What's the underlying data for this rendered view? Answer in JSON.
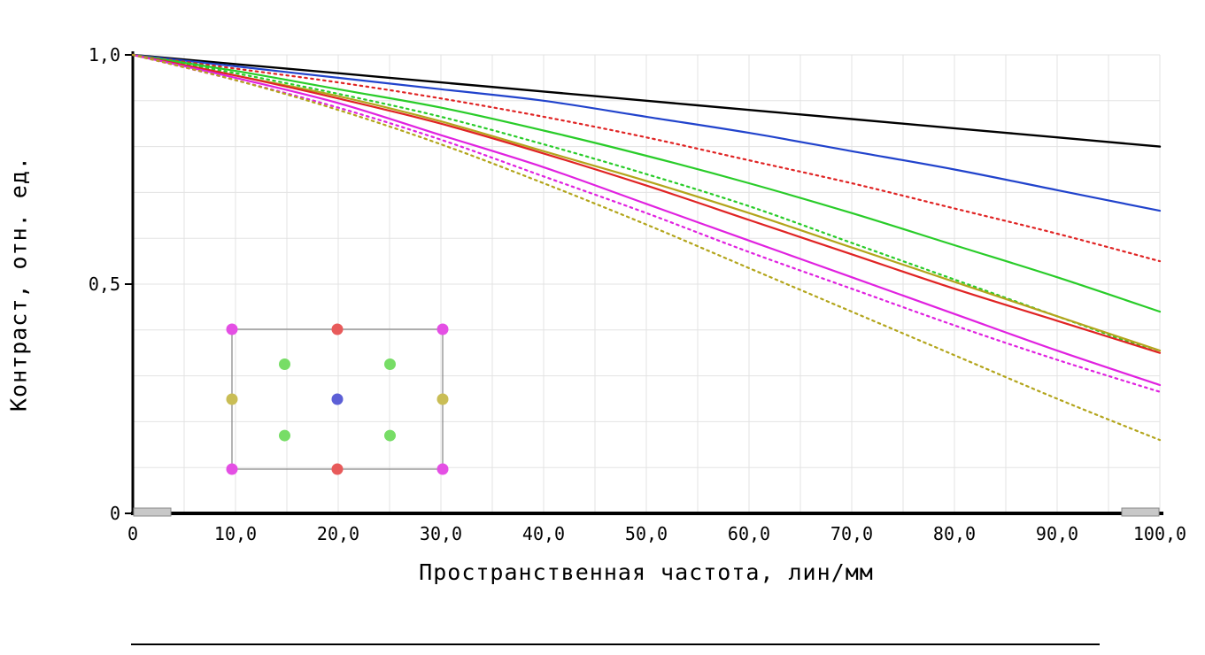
{
  "chart_data": {
    "type": "line",
    "title": "",
    "xlabel": "Пространственная частота, лин/мм",
    "ylabel": "Контраст, отн. ед.",
    "xlim": [
      0,
      100
    ],
    "ylim": [
      0,
      1.0
    ],
    "x_ticks": [
      0,
      10,
      20,
      30,
      40,
      50,
      60,
      70,
      80,
      90,
      100
    ],
    "x_tick_labels": [
      "0",
      "10,0",
      "20,0",
      "30,0",
      "40,0",
      "50,0",
      "60,0",
      "70,0",
      "80,0",
      "90,0",
      "100,0"
    ],
    "y_ticks": [
      0,
      0.5,
      1.0
    ],
    "y_tick_labels": [
      "0",
      "0,5",
      "1,0"
    ],
    "grid": {
      "x_step": 5,
      "y_step": 0.1,
      "color": "#e3e3e3",
      "on": true
    },
    "legend": "none",
    "x": [
      0,
      10,
      20,
      30,
      40,
      50,
      60,
      70,
      80,
      90,
      100
    ],
    "series": [
      {
        "name": "mtf-center-black-solid",
        "color": "#000000",
        "style": "solid",
        "values": [
          1.0,
          0.98,
          0.96,
          0.94,
          0.92,
          0.9,
          0.88,
          0.86,
          0.84,
          0.82,
          0.8
        ]
      },
      {
        "name": "mtf-blue-solid",
        "color": "#2143cc",
        "style": "solid",
        "values": [
          1.0,
          0.975,
          0.95,
          0.925,
          0.9,
          0.865,
          0.83,
          0.79,
          0.75,
          0.705,
          0.66
        ]
      },
      {
        "name": "mtf-red-dotted",
        "color": "#e02424",
        "style": "dotted",
        "values": [
          1.0,
          0.97,
          0.94,
          0.905,
          0.865,
          0.82,
          0.77,
          0.72,
          0.665,
          0.61,
          0.55
        ]
      },
      {
        "name": "mtf-green-solid",
        "color": "#29cc29",
        "style": "solid",
        "values": [
          1.0,
          0.965,
          0.925,
          0.885,
          0.835,
          0.78,
          0.72,
          0.655,
          0.585,
          0.515,
          0.44
        ]
      },
      {
        "name": "mtf-green-dotted",
        "color": "#29cc29",
        "style": "dotted",
        "values": [
          1.0,
          0.96,
          0.915,
          0.865,
          0.805,
          0.74,
          0.67,
          0.59,
          0.51,
          0.43,
          0.35
        ]
      },
      {
        "name": "mtf-olive-solid",
        "color": "#b3a51c",
        "style": "solid",
        "values": [
          1.0,
          0.955,
          0.91,
          0.855,
          0.79,
          0.725,
          0.655,
          0.58,
          0.505,
          0.43,
          0.355
        ]
      },
      {
        "name": "mtf-red-solid",
        "color": "#e02424",
        "style": "solid",
        "values": [
          1.0,
          0.955,
          0.905,
          0.85,
          0.785,
          0.715,
          0.64,
          0.565,
          0.49,
          0.42,
          0.35
        ]
      },
      {
        "name": "mtf-magenta-solid",
        "color": "#e022e0",
        "style": "solid",
        "values": [
          1.0,
          0.95,
          0.895,
          0.825,
          0.755,
          0.675,
          0.595,
          0.515,
          0.435,
          0.355,
          0.28
        ]
      },
      {
        "name": "mtf-magenta-dotted",
        "color": "#e022e0",
        "style": "dotted",
        "values": [
          1.0,
          0.945,
          0.885,
          0.815,
          0.735,
          0.655,
          0.57,
          0.49,
          0.41,
          0.335,
          0.265
        ]
      },
      {
        "name": "mtf-olive-dotted",
        "color": "#b3a51c",
        "style": "dotted",
        "values": [
          1.0,
          0.945,
          0.88,
          0.805,
          0.72,
          0.63,
          0.535,
          0.44,
          0.345,
          0.25,
          0.16
        ]
      }
    ],
    "inset_field_points": {
      "border_color": "#8d8d8d",
      "dots": [
        {
          "x": 0.0,
          "y": 0.0,
          "color": "#e44fe4"
        },
        {
          "x": 0.5,
          "y": 0.0,
          "color": "#e85a5a"
        },
        {
          "x": 1.0,
          "y": 0.0,
          "color": "#e44fe4"
        },
        {
          "x": 0.25,
          "y": 0.25,
          "color": "#77dd66"
        },
        {
          "x": 0.75,
          "y": 0.25,
          "color": "#77dd66"
        },
        {
          "x": 0.0,
          "y": 0.5,
          "color": "#c9bd55"
        },
        {
          "x": 0.5,
          "y": 0.5,
          "color": "#5c5fd6"
        },
        {
          "x": 1.0,
          "y": 0.5,
          "color": "#c9bd55"
        },
        {
          "x": 0.25,
          "y": 0.76,
          "color": "#77dd66"
        },
        {
          "x": 0.75,
          "y": 0.76,
          "color": "#77dd66"
        },
        {
          "x": 0.0,
          "y": 1.0,
          "color": "#e44fe4"
        },
        {
          "x": 0.5,
          "y": 1.0,
          "color": "#e85a5a"
        },
        {
          "x": 1.0,
          "y": 1.0,
          "color": "#e44fe4"
        }
      ]
    },
    "axis_colors": {
      "axis": "#000000",
      "handle_fill": "#c8c8c8",
      "handle_stroke": "#8a8a8a"
    }
  }
}
